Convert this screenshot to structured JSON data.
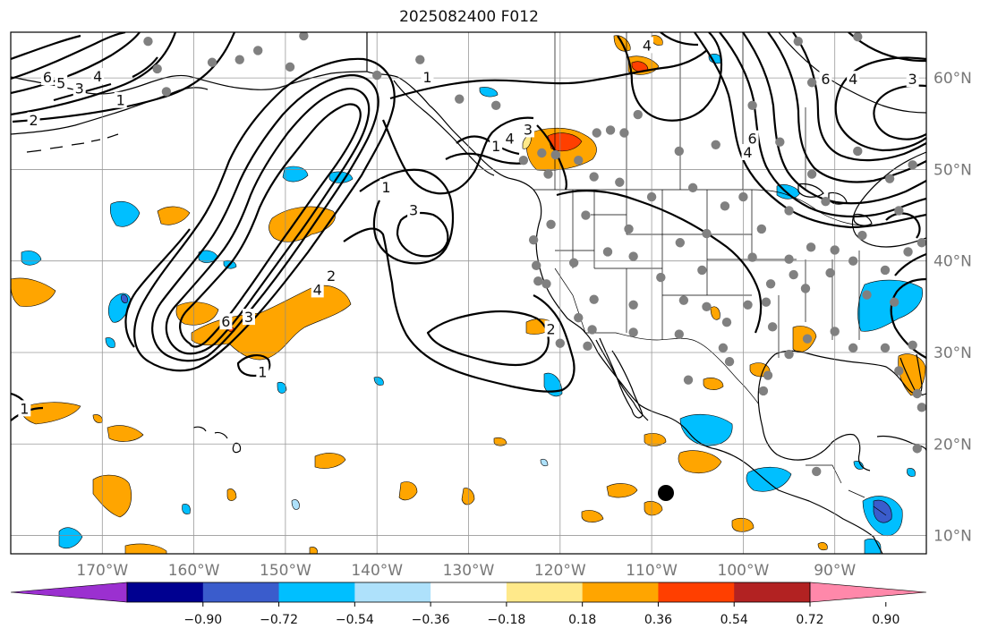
{
  "title": "2025082400 F012",
  "map": {
    "lon_range": [
      -180,
      -80
    ],
    "lat_range": [
      8,
      65
    ],
    "lon_ticks": [
      -170,
      -160,
      -150,
      -140,
      -130,
      -120,
      -110,
      -100,
      -90
    ],
    "lon_labels": [
      "170°W",
      "160°W",
      "150°W",
      "140°W",
      "130°W",
      "120°W",
      "110°W",
      "100°W",
      "90°W"
    ],
    "lat_ticks": [
      10,
      20,
      30,
      40,
      50,
      60
    ],
    "lat_labels": [
      "10°N",
      "20°N",
      "30°N",
      "40°N",
      "50°N",
      "60°N"
    ],
    "grid": true,
    "contour_labels": [
      {
        "text": "6",
        "lon": -176,
        "lat": 60
      },
      {
        "text": "5",
        "lon": -174.5,
        "lat": 59.4
      },
      {
        "text": "3",
        "lon": -172.5,
        "lat": 58.8
      },
      {
        "text": "4",
        "lon": -170.5,
        "lat": 60.1
      },
      {
        "text": "2",
        "lon": -177.5,
        "lat": 55.3
      },
      {
        "text": "1",
        "lon": -168,
        "lat": 57.5
      },
      {
        "text": "1",
        "lon": -134.5,
        "lat": 60
      },
      {
        "text": "4",
        "lon": -110.5,
        "lat": 63.5
      },
      {
        "text": "3",
        "lon": -123.5,
        "lat": 54.3
      },
      {
        "text": "4",
        "lon": -125.5,
        "lat": 53.3
      },
      {
        "text": "1",
        "lon": -127,
        "lat": 52.5
      },
      {
        "text": "1",
        "lon": -139,
        "lat": 48
      },
      {
        "text": "3",
        "lon": -136,
        "lat": 45.5
      },
      {
        "text": "2",
        "lon": -121,
        "lat": 32.5
      },
      {
        "text": "2",
        "lon": -145,
        "lat": 38.3
      },
      {
        "text": "4",
        "lon": -146.5,
        "lat": 36.8
      },
      {
        "text": "3",
        "lon": -154,
        "lat": 33.8
      },
      {
        "text": "6",
        "lon": -156.5,
        "lat": 33.3
      },
      {
        "text": "1",
        "lon": -152.5,
        "lat": 27.8
      },
      {
        "text": "1",
        "lon": -178.5,
        "lat": 23.8
      },
      {
        "text": "6",
        "lon": -99,
        "lat": 53.3
      },
      {
        "text": "4",
        "lon": -99.5,
        "lat": 51.8
      },
      {
        "text": "6",
        "lon": -91,
        "lat": 59.8
      },
      {
        "text": "4",
        "lon": -88,
        "lat": 59.8
      },
      {
        "text": "3",
        "lon": -81.5,
        "lat": 59.8
      }
    ]
  },
  "colorbar": {
    "tick_labels": [
      "−0.90",
      "−0.72",
      "−0.54",
      "−0.36",
      "−0.18",
      "0.18",
      "0.36",
      "0.54",
      "0.72",
      "0.90"
    ],
    "colors": [
      "#9b30d0",
      "#000090",
      "#3a5ccc",
      "#00bfff",
      "#aee1fb",
      "#ffffff",
      "#ffe98a",
      "#ffa500",
      "#ff3f00",
      "#b22222",
      "#ff88aa"
    ]
  }
}
